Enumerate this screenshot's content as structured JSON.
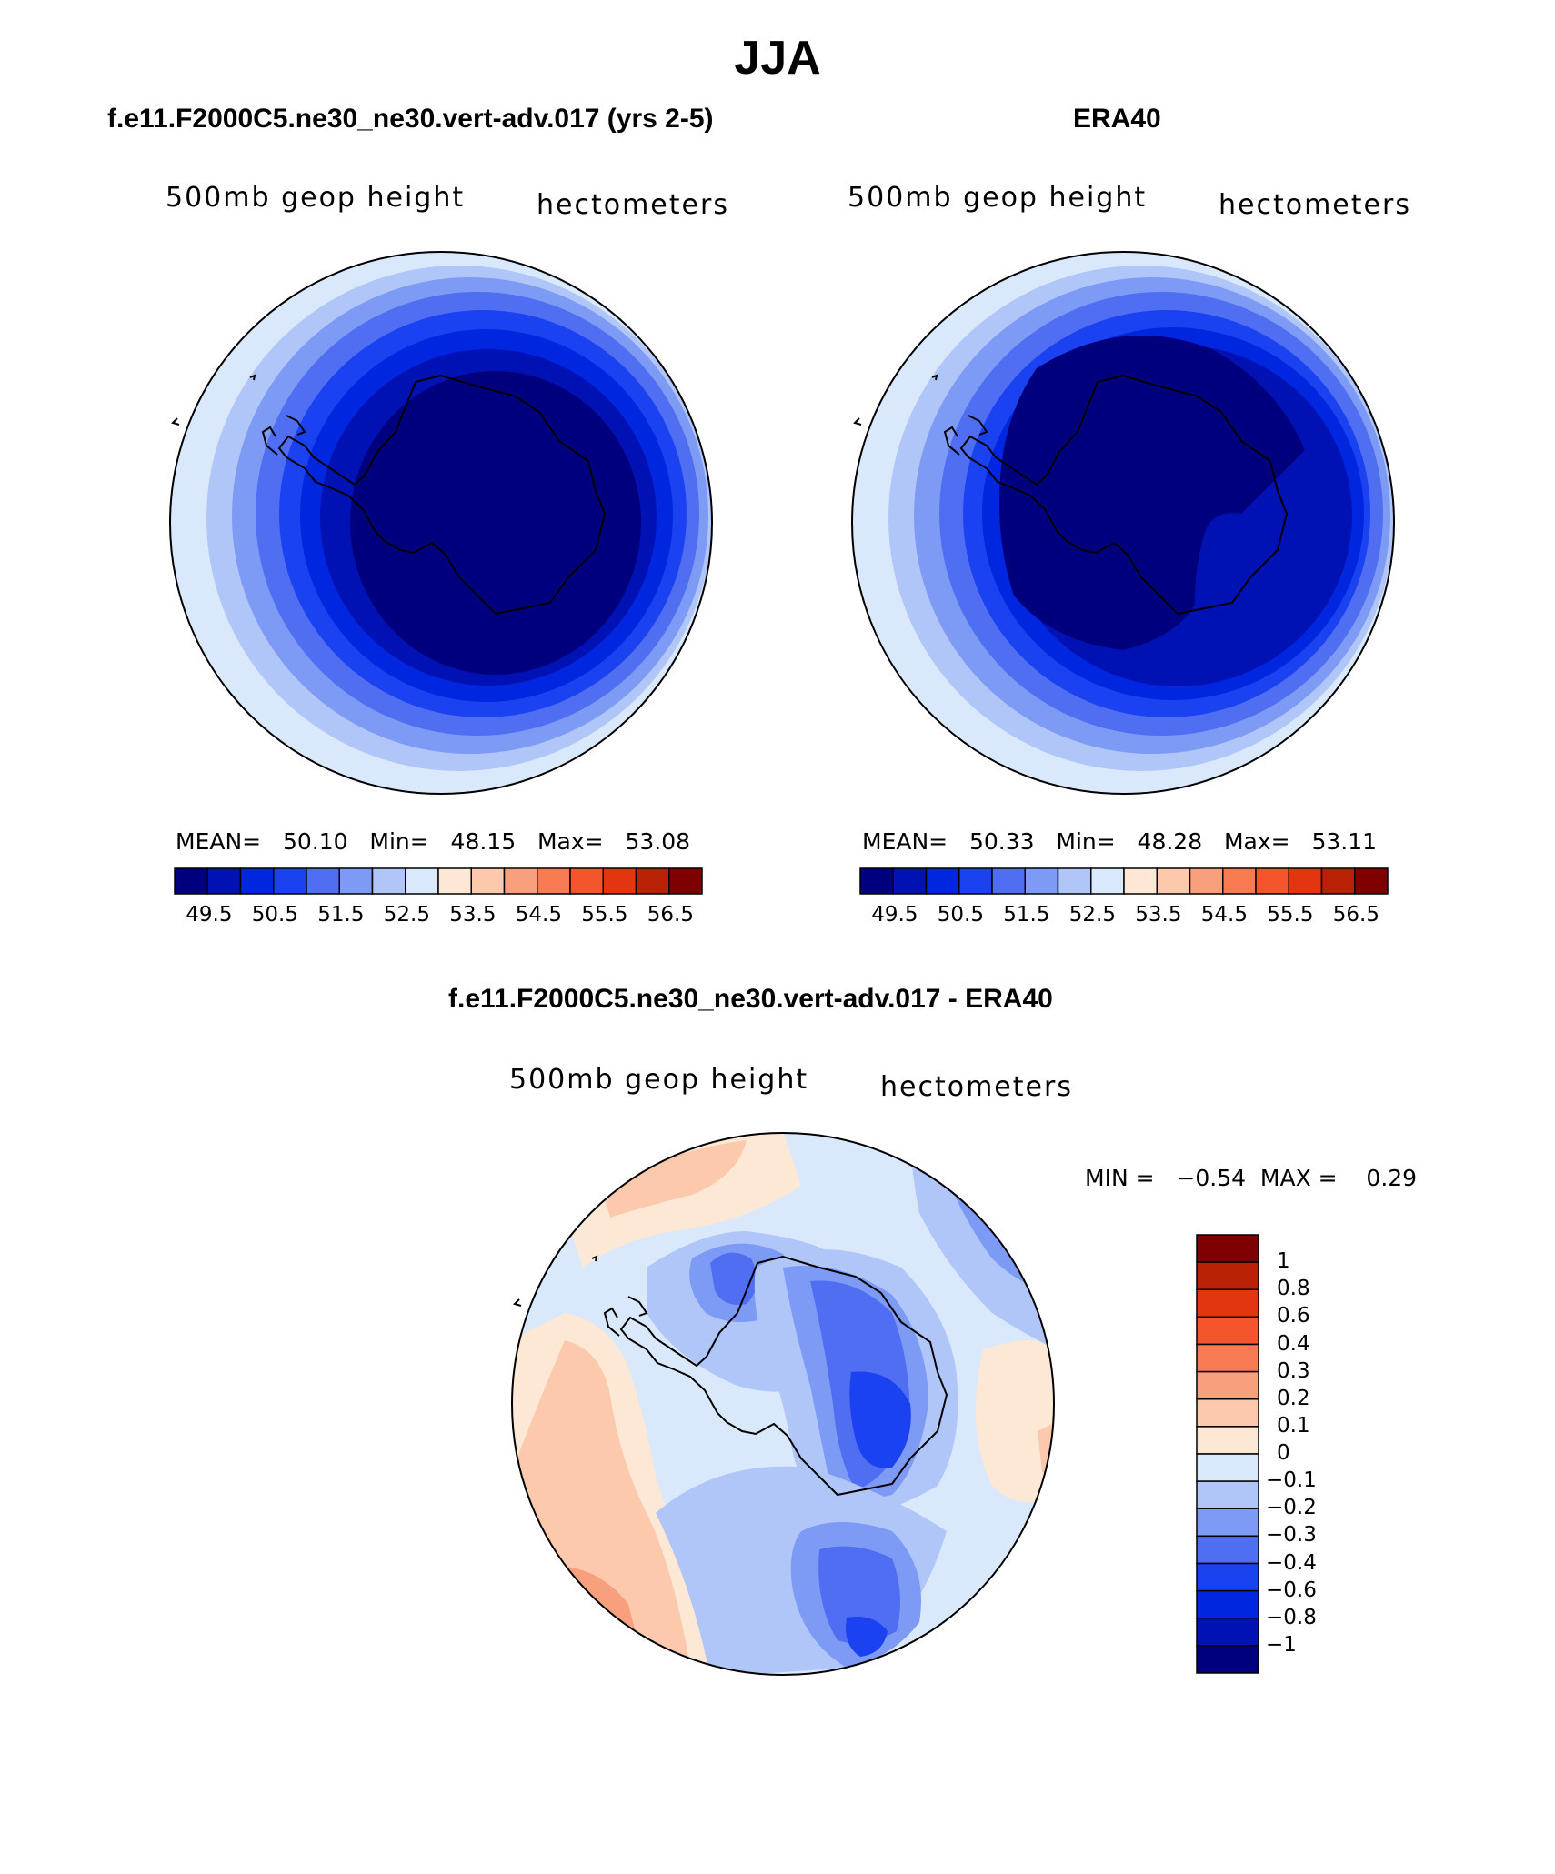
{
  "title": "JJA",
  "panels": [
    {
      "id": "model",
      "title": "f.e11.F2000C5.ne30_ne30.vert-adv.017 (yrs 2-5)",
      "variable": "500mb  geop  height",
      "units": "hectometers",
      "stats": {
        "mean_label": "MEAN=",
        "mean": "50.10",
        "min_label": "Min=",
        "min": "48.15",
        "max_label": "Max=",
        "max": "53.08"
      },
      "innermost_shading": "#00007f"
    },
    {
      "id": "era40",
      "title": "ERA40",
      "variable": "500mb  geop  height",
      "units": "hectometers",
      "stats": {
        "mean_label": "MEAN=",
        "mean": "50.33",
        "min_label": "Min=",
        "min": "48.28",
        "max_label": "Max=",
        "max": "53.11"
      },
      "innermost_shading": "#00007f"
    }
  ],
  "colorbar": {
    "colors": [
      "#00007f",
      "#0012b3",
      "#0026e0",
      "#1b42f0",
      "#4f6ef2",
      "#7d9af5",
      "#b0c6f8",
      "#d9e8fb",
      "#fde8d6",
      "#fcc9ad",
      "#f8a07e",
      "#f77a52",
      "#f4552c",
      "#e33510",
      "#b82104",
      "#7f0000"
    ],
    "labels": [
      "49.5",
      "50.5",
      "51.5",
      "52.5",
      "53.5",
      "54.5",
      "55.5",
      "56.5"
    ]
  },
  "diff": {
    "title": "f.e11.F2000C5.ne30_ne30.vert-adv.017 - ERA40",
    "variable": "500mb  geop  height",
    "units": "hectometers",
    "minmax": {
      "min_label": "MIN =",
      "min": "−0.54",
      "max_label": "MAX =",
      "max": "0.29"
    },
    "colors": [
      "#7f0000",
      "#b82104",
      "#e33510",
      "#f4552c",
      "#f77a52",
      "#f8a07e",
      "#fcc9ad",
      "#fde8d6",
      "#d9e8fb",
      "#b0c6f8",
      "#7d9af5",
      "#4f6ef2",
      "#1b42f0",
      "#0026e0",
      "#0012b3",
      "#00007f"
    ],
    "labels": [
      "1",
      "0.8",
      "0.6",
      "0.4",
      "0.3",
      "0.2",
      "0.1",
      "0",
      "−0.1",
      "−0.2",
      "−0.3",
      "−0.4",
      "−0.6",
      "−0.8",
      "−1"
    ]
  }
}
